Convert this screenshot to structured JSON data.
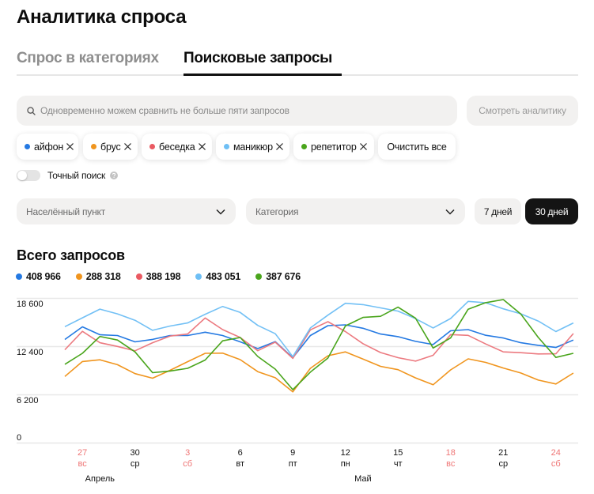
{
  "header": {
    "title": "Аналитика спроса"
  },
  "tabs": [
    {
      "label": "Спрос в категориях",
      "active": false
    },
    {
      "label": "Поисковые запросы",
      "active": true
    }
  ],
  "search": {
    "icon": "search-icon",
    "placeholder": "Одновременно можем сравнить не больше пяти запросов",
    "value": "",
    "submit_label": "Смотреть аналитику"
  },
  "chips": [
    {
      "label": "айфон",
      "color": "#2479e2",
      "remove_icon": "close-icon"
    },
    {
      "label": "брус",
      "color": "#f0951e",
      "remove_icon": "close-icon"
    },
    {
      "label": "беседка",
      "color": "#ea5a62",
      "remove_icon": "close-icon"
    },
    {
      "label": "маникюр",
      "color": "#6ebff5",
      "remove_icon": "close-icon"
    },
    {
      "label": "репетитор",
      "color": "#4aa51c",
      "remove_icon": "close-icon"
    }
  ],
  "clear_all_label": "Очистить все",
  "exact_search": {
    "label": "Точный поиск",
    "enabled": false,
    "help_icon": "question-icon"
  },
  "filters": {
    "locality": {
      "placeholder": "Населённый пункт",
      "icon": "chevron-down-icon"
    },
    "category": {
      "placeholder": "Категория",
      "icon": "chevron-down-icon"
    }
  },
  "period": {
    "options": [
      {
        "label": "7 дней",
        "active": false
      },
      {
        "label": "30 дней",
        "active": true
      }
    ]
  },
  "summary": {
    "title": "Всего запросов",
    "totals": [
      {
        "query": "айфон",
        "value": "408 966",
        "color": "#2479e2"
      },
      {
        "query": "брус",
        "value": "288 318",
        "color": "#f0951e"
      },
      {
        "query": "беседка",
        "value": "388 198",
        "color": "#ea5a62"
      },
      {
        "query": "маникюр",
        "value": "483 051",
        "color": "#6ebff5"
      },
      {
        "query": "репетитор",
        "value": "387 676",
        "color": "#4aa51c"
      }
    ]
  },
  "chart_data": {
    "type": "line",
    "title": "Всего запросов",
    "xlabel": "",
    "ylabel": "",
    "grid": true,
    "legend_position": "top",
    "ylim": [
      0,
      18600
    ],
    "y_ticks": [
      {
        "label": "18 600",
        "value": 18600
      },
      {
        "label": "12 400",
        "value": 12400
      },
      {
        "label": "6 200",
        "value": 6200
      },
      {
        "label": "0",
        "value": 0
      }
    ],
    "x": [
      "26.04",
      "27.04",
      "28.04",
      "29.04",
      "30.04",
      "01.05",
      "02.05",
      "03.05",
      "04.05",
      "05.05",
      "06.05",
      "07.05",
      "08.05",
      "09.05",
      "10.05",
      "11.05",
      "12.05",
      "13.05",
      "14.05",
      "15.05",
      "16.05",
      "17.05",
      "18.05",
      "19.05",
      "20.05",
      "21.05",
      "22.05",
      "23.05",
      "24.05",
      "25.05"
    ],
    "x_ticks": [
      {
        "index": 1,
        "day": "27",
        "weekday": "вс",
        "weekend": true
      },
      {
        "index": 4,
        "day": "30",
        "weekday": "ср",
        "weekend": false
      },
      {
        "index": 7,
        "day": "3",
        "weekday": "сб",
        "weekend": true
      },
      {
        "index": 10,
        "day": "6",
        "weekday": "вт",
        "weekend": false
      },
      {
        "index": 13,
        "day": "9",
        "weekday": "пт",
        "weekend": false
      },
      {
        "index": 16,
        "day": "12",
        "weekday": "пн",
        "weekend": false
      },
      {
        "index": 19,
        "day": "15",
        "weekday": "чт",
        "weekend": false
      },
      {
        "index": 22,
        "day": "18",
        "weekday": "вс",
        "weekend": true
      },
      {
        "index": 25,
        "day": "21",
        "weekday": "ср",
        "weekend": false
      },
      {
        "index": 28,
        "day": "24",
        "weekday": "сб",
        "weekend": true
      }
    ],
    "months": [
      {
        "label": "Апрель",
        "index": 2
      },
      {
        "label": "Май",
        "index": 17
      }
    ],
    "series": [
      {
        "name": "айфон",
        "color": "#2479e2",
        "total": 408966,
        "values": [
          13310,
          14940,
          13920,
          13820,
          13010,
          13320,
          13820,
          13820,
          14250,
          13820,
          13010,
          12150,
          13040,
          10970,
          13820,
          15090,
          15200,
          14760,
          14020,
          13680,
          13070,
          12660,
          14430,
          14590,
          13850,
          13510,
          12900,
          12560,
          12290,
          13240
        ]
      },
      {
        "name": "брус",
        "color": "#f0951e",
        "total": 288318,
        "values": [
          8560,
          10480,
          10700,
          10070,
          8920,
          8330,
          9350,
          10460,
          11540,
          11560,
          10720,
          9180,
          8400,
          6580,
          9600,
          11220,
          11720,
          10800,
          9860,
          9430,
          8380,
          7490,
          9400,
          10820,
          10370,
          9650,
          9010,
          8090,
          7590,
          9000
        ]
      },
      {
        "name": "беседка",
        "color": "#ec7a80",
        "total": 388198,
        "values": [
          11990,
          14360,
          12900,
          12420,
          11860,
          12900,
          13750,
          14020,
          16080,
          14590,
          13570,
          11870,
          12970,
          10890,
          14550,
          15600,
          14330,
          12780,
          11640,
          10980,
          10530,
          11280,
          13950,
          13840,
          12740,
          11720,
          11620,
          11450,
          11480,
          14080
        ]
      },
      {
        "name": "маникюр",
        "color": "#72c0f5",
        "total": 483051,
        "values": [
          14960,
          16100,
          17220,
          16610,
          15780,
          14490,
          15040,
          15440,
          16560,
          17560,
          16790,
          15120,
          14060,
          11110,
          14800,
          16450,
          17970,
          17800,
          17380,
          16960,
          15990,
          14800,
          16010,
          18210,
          18040,
          17260,
          16620,
          15680,
          14330,
          15440
        ]
      },
      {
        "name": "репетитор",
        "color": "#4aa51c",
        "total": 387676,
        "values": [
          10120,
          11540,
          13700,
          13240,
          11720,
          9050,
          9260,
          9600,
          10670,
          13140,
          13570,
          11130,
          9500,
          6860,
          9120,
          10930,
          15050,
          16150,
          16290,
          17470,
          16050,
          12220,
          13510,
          17210,
          18050,
          18450,
          16600,
          13570,
          11010,
          11540
        ]
      }
    ]
  }
}
